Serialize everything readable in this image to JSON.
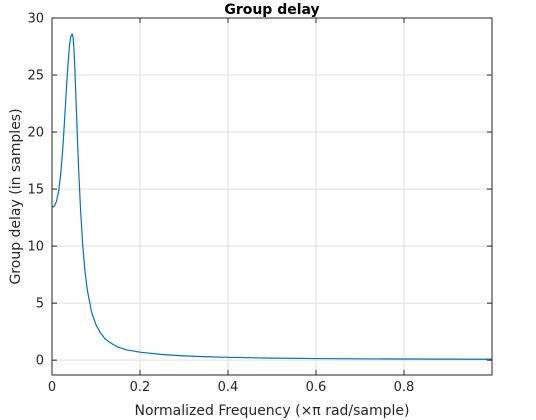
{
  "chart_data": {
    "type": "line",
    "title": "Group delay",
    "xlabel": "Normalized Frequency (×π rad/sample)",
    "ylabel": "Group delay (in samples)",
    "xlim": [
      0,
      1
    ],
    "ylim": [
      -1.3,
      30
    ],
    "xticks": [
      0,
      0.2,
      0.4,
      0.6,
      0.8
    ],
    "xtick_labels": [
      "0",
      "0.2",
      "0.4",
      "0.6",
      "0.8"
    ],
    "yticks": [
      0,
      5,
      10,
      15,
      20,
      25,
      30
    ],
    "ytick_labels": [
      "0",
      "5",
      "10",
      "15",
      "20",
      "25",
      "30"
    ],
    "grid": true,
    "box": true,
    "series": [
      {
        "color": "#0072bd",
        "x": [
          0,
          0.005,
          0.01,
          0.015,
          0.02,
          0.025,
          0.03,
          0.035,
          0.04,
          0.043,
          0.046,
          0.048,
          0.05,
          0.052,
          0.054,
          0.057,
          0.06,
          0.065,
          0.07,
          0.075,
          0.08,
          0.09,
          0.1,
          0.11,
          0.12,
          0.13,
          0.14,
          0.15,
          0.17,
          0.2,
          0.25,
          0.3,
          0.35,
          0.4,
          0.5,
          0.6,
          0.7,
          0.8,
          0.9,
          1.0
        ],
        "y": [
          13.4,
          13.5,
          13.9,
          14.8,
          16.4,
          18.8,
          22.0,
          25.2,
          27.7,
          28.4,
          28.6,
          28.3,
          27.2,
          25.5,
          23.4,
          20.3,
          17.2,
          13.1,
          10.0,
          7.8,
          6.2,
          4.2,
          3.1,
          2.4,
          1.9,
          1.6,
          1.35,
          1.15,
          0.9,
          0.7,
          0.5,
          0.38,
          0.3,
          0.25,
          0.18,
          0.14,
          0.12,
          0.1,
          0.09,
          0.08
        ]
      }
    ]
  }
}
